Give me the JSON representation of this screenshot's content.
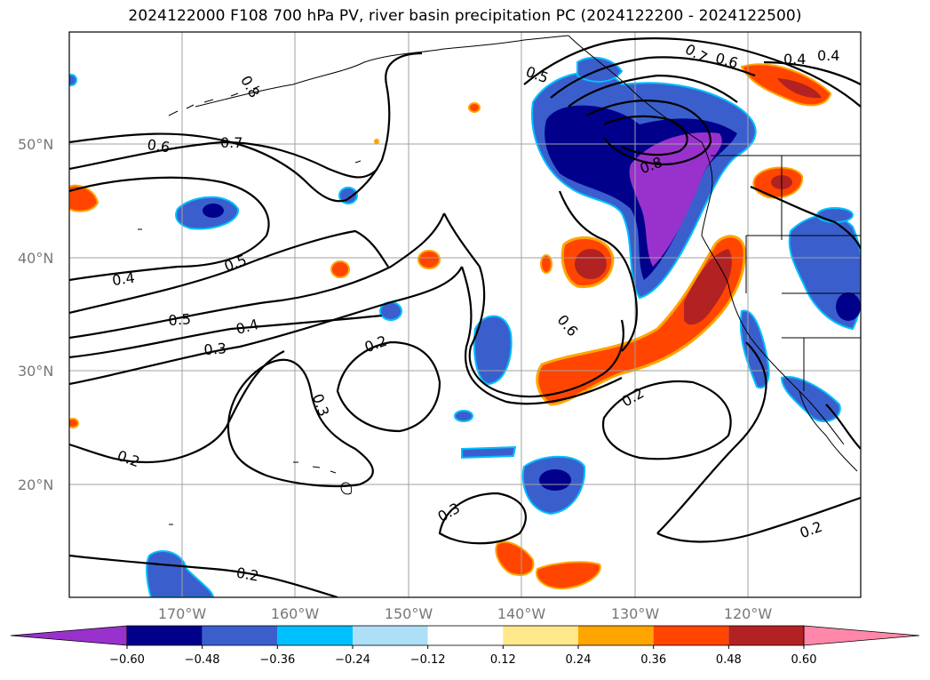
{
  "title": "2024122000 F108 700 hPa PV, river basin precipitation PC (2024122200 - 2024122500)",
  "lat_labels": [
    "50°N",
    "40°N",
    "30°N",
    "20°N"
  ],
  "lon_labels": [
    "170°W",
    "160°W",
    "150°W",
    "140°W",
    "130°W",
    "120°W"
  ],
  "contour_labels": [
    "0.2",
    "0.3",
    "0.4",
    "0.5",
    "0.6",
    "0.7",
    "0.8"
  ],
  "colorbar": {
    "ticks": [
      "−0.60",
      "−0.48",
      "−0.36",
      "−0.24",
      "−0.12",
      "0.12",
      "0.24",
      "0.36",
      "0.48",
      "0.60"
    ],
    "colors": [
      "#9932CC",
      "#00008B",
      "#3A5FCD",
      "#00BFFF",
      "#ADE0F7",
      "#FFFFFF",
      "#FFE98A",
      "#FFA500",
      "#FF4500",
      "#B22222",
      "#FF88AA"
    ]
  }
}
